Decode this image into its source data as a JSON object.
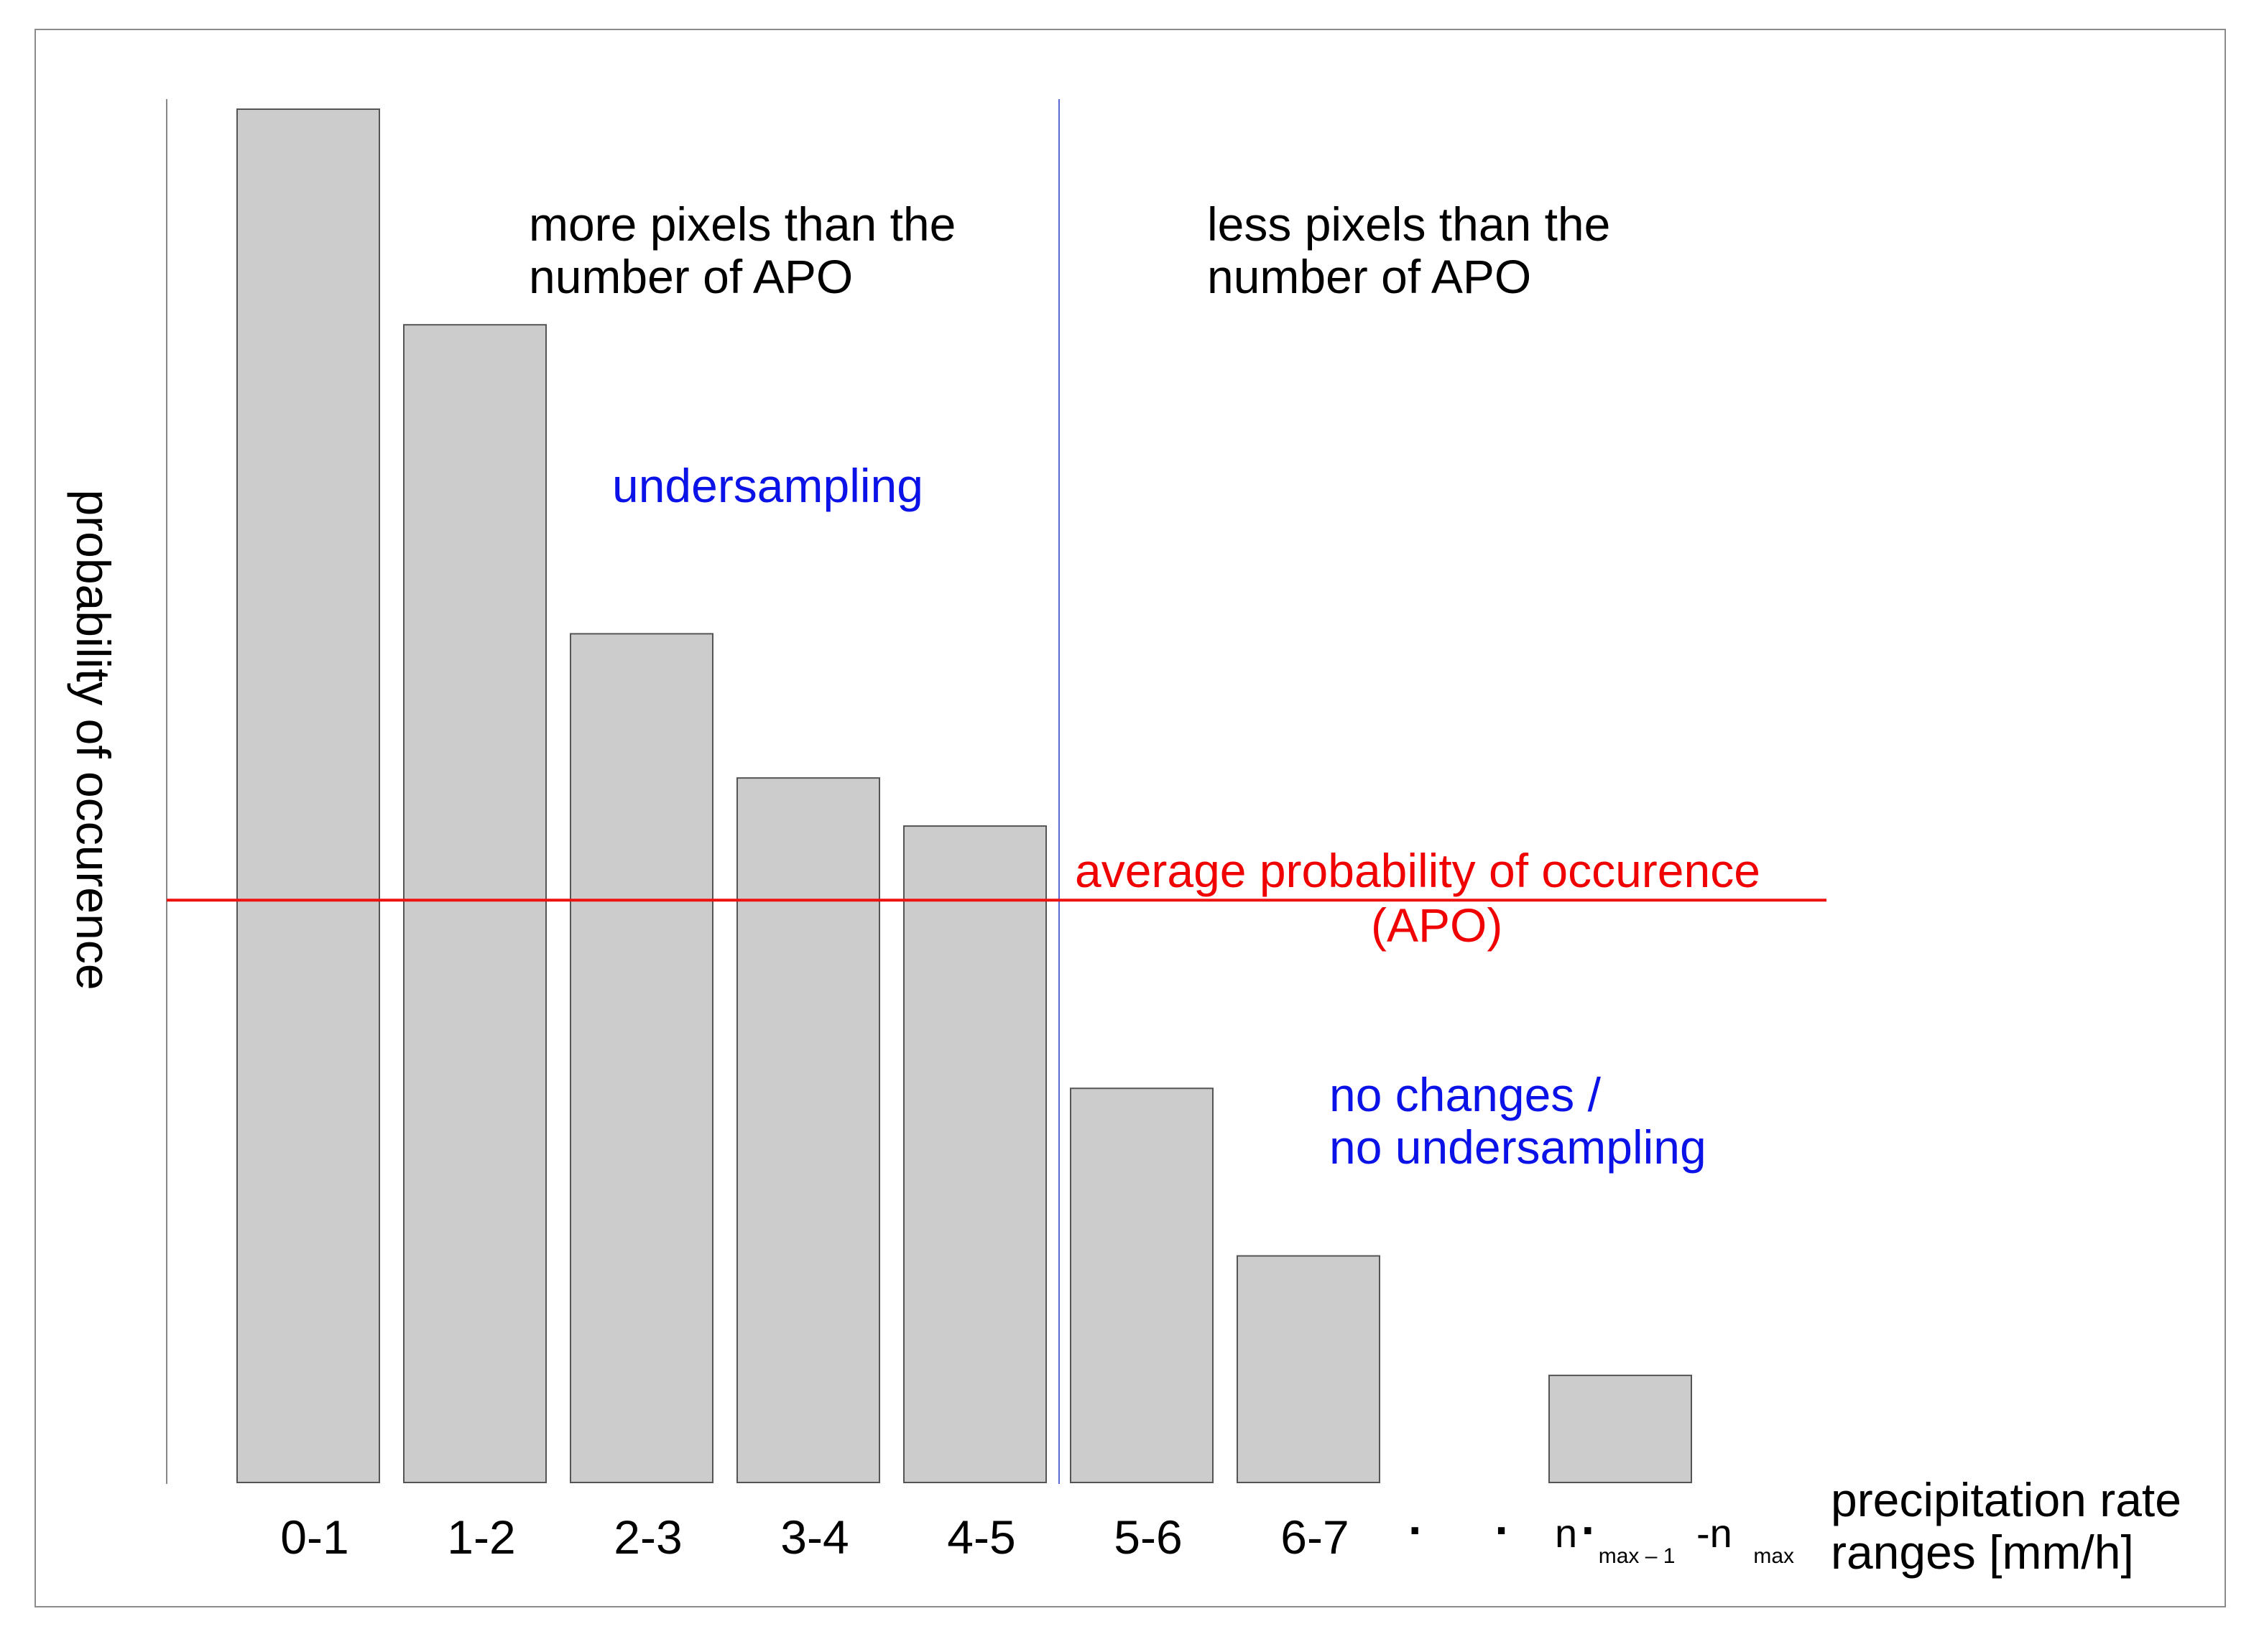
{
  "chart_data": {
    "type": "bar",
    "categories": [
      "0-1",
      "1-2",
      "2-3",
      "3-4",
      "4-5",
      "5-6",
      "6-7",
      "n_max–1-n_max"
    ],
    "values": [
      1.0,
      0.843,
      0.618,
      0.513,
      0.478,
      0.287,
      0.165,
      0.078
    ],
    "category_labels": [
      "0-1",
      "1-2",
      "2-3",
      "3-4",
      "4-5",
      "5-6",
      "6-7"
    ],
    "last_label": {
      "n1": "n",
      "sub1": "max – 1",
      "sep": "-n",
      "sub2": "max"
    },
    "ellipsis": "· · ·",
    "apo_level": 0.424,
    "divider_after_category": "4-5",
    "xlabel_line1": "precipitation rate",
    "xlabel_line2": "ranges [mm/h]",
    "ylabel": "probability of occurence",
    "annotations": {
      "left_line1": "more pixels than the",
      "left_line2": "number of APO",
      "right_line1": "less pixels than the",
      "right_line2": "number of APO",
      "undersampling": "undersampling",
      "apo_line1": "average probability of occurence",
      "apo_line2": "(APO)",
      "nochange_line1": "no changes /",
      "nochange_line2": "no undersampling"
    },
    "colors": {
      "bar": "#cccccc",
      "bar_edge": "#555555",
      "apo": "#ee1111",
      "divider": "#5a68d8",
      "blue_text": "#0b12e8",
      "red_text": "#f00000"
    }
  }
}
